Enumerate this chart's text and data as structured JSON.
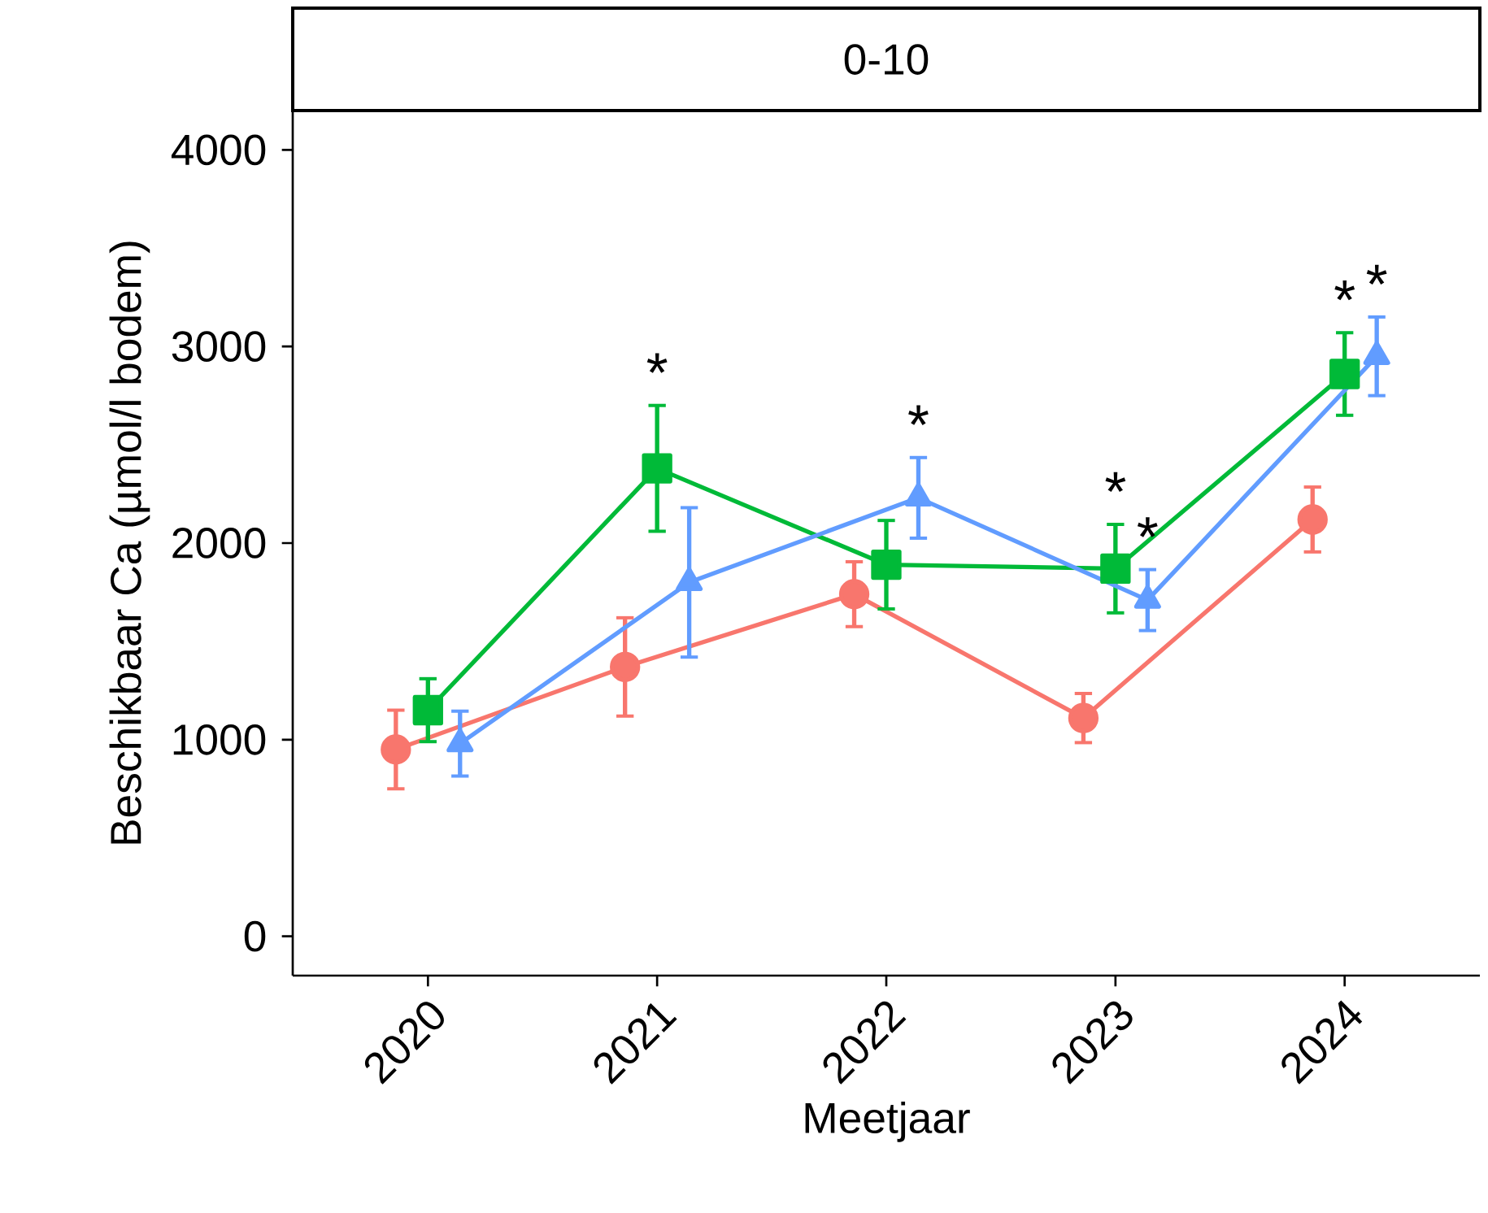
{
  "chart_data": {
    "type": "line",
    "title": "0-10",
    "xlabel": "Meetjaar",
    "ylabel": "Beschikbaar Ca (µmol/l bodem)",
    "xlim": [
      2019.41,
      2024.59
    ],
    "xticks": [
      2020,
      2021,
      2022,
      2023,
      2024
    ],
    "ylim": [
      -200,
      4200
    ],
    "yticks": [
      0,
      1000,
      2000,
      3000,
      4000
    ],
    "series": [
      {
        "color": "#f8766d",
        "marker": "circle",
        "x": [
          2019.86,
          2020.86,
          2021.86,
          2022.86,
          2023.86
        ],
        "values": [
          950,
          1370,
          1740,
          1110,
          2120
        ],
        "errors": [
          200,
          250,
          165,
          125,
          165
        ]
      },
      {
        "color": "#00ba38",
        "marker": "square",
        "x": [
          2020,
          2021,
          2022,
          2023,
          2024
        ],
        "values": [
          1150,
          2380,
          1890,
          1870,
          2860
        ],
        "errors": [
          160,
          320,
          225,
          225,
          210
        ]
      },
      {
        "color": "#619cff",
        "marker": "triangle",
        "x": [
          2020.14,
          2021.14,
          2022.14,
          2023.14,
          2024.14
        ],
        "values": [
          980,
          1800,
          2230,
          1710,
          2950
        ],
        "errors": [
          165,
          380,
          205,
          155,
          200
        ]
      }
    ],
    "annotations": [
      {
        "text": "*",
        "x": 2021,
        "y": 2380
      },
      {
        "text": "*",
        "x": 2022.14,
        "y": 2230
      },
      {
        "text": "*",
        "x": 2023,
        "y": 1870
      },
      {
        "text": "*",
        "x": 2023.14,
        "y": 1710
      },
      {
        "text": "*",
        "x": 2024,
        "y": 2860
      },
      {
        "text": "*",
        "x": 2024.14,
        "y": 2950
      }
    ]
  }
}
